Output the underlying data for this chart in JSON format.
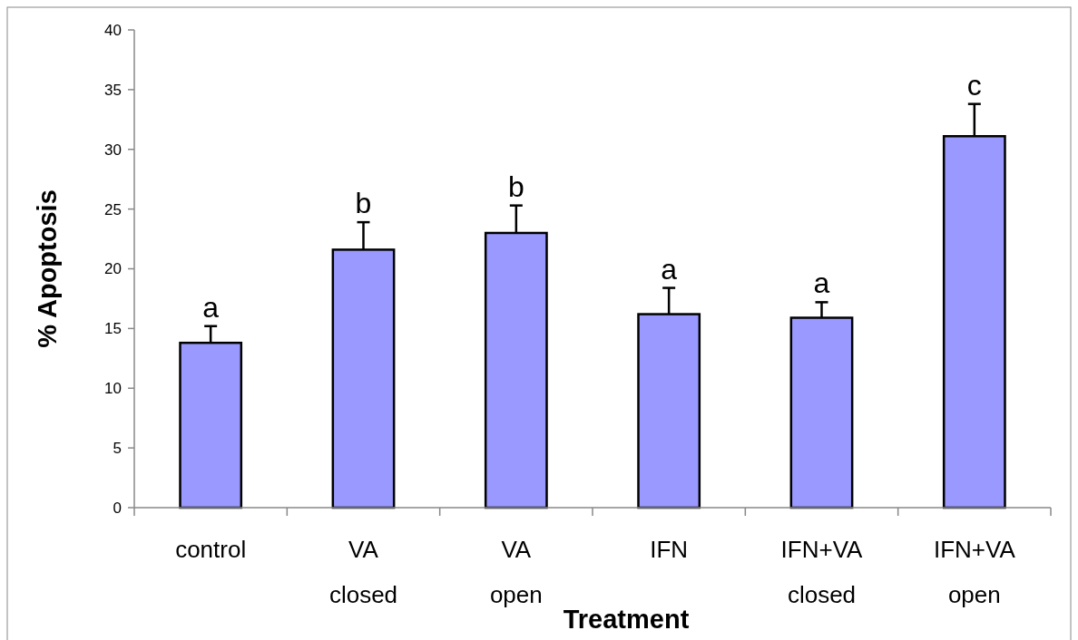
{
  "chart_data": {
    "type": "bar",
    "xlabel": "Treatment",
    "ylabel": "% Apoptosis",
    "categories": [
      "control",
      "VA closed",
      "VA open",
      "IFN",
      "IFN+VA closed",
      "IFN+VA open"
    ],
    "values": [
      13.8,
      21.6,
      23.0,
      16.2,
      15.9,
      31.1
    ],
    "errors": [
      [
        13.8,
        15.2
      ],
      [
        21.6,
        23.9
      ],
      [
        23.0,
        25.3
      ],
      [
        16.2,
        18.4
      ],
      [
        15.9,
        17.2
      ],
      [
        31.1,
        33.8
      ]
    ],
    "color": "#9999ff",
    "ylim": [
      0,
      40
    ],
    "yticks": [
      0,
      5,
      10,
      15,
      20,
      25,
      30,
      35,
      40
    ],
    "grid": false,
    "annotations": [
      {
        "text": "a",
        "x": "control",
        "y": 15.2
      },
      {
        "text": "b",
        "x": "VA closed",
        "y": 23.9
      },
      {
        "text": "b",
        "x": "VA open",
        "y": 25.3
      },
      {
        "text": "a",
        "x": "IFN",
        "y": 18.4
      },
      {
        "text": "a",
        "x": "IFN+VA closed",
        "y": 17.2
      },
      {
        "text": "c",
        "x": "IFN+VA open",
        "y": 33.8
      }
    ]
  }
}
